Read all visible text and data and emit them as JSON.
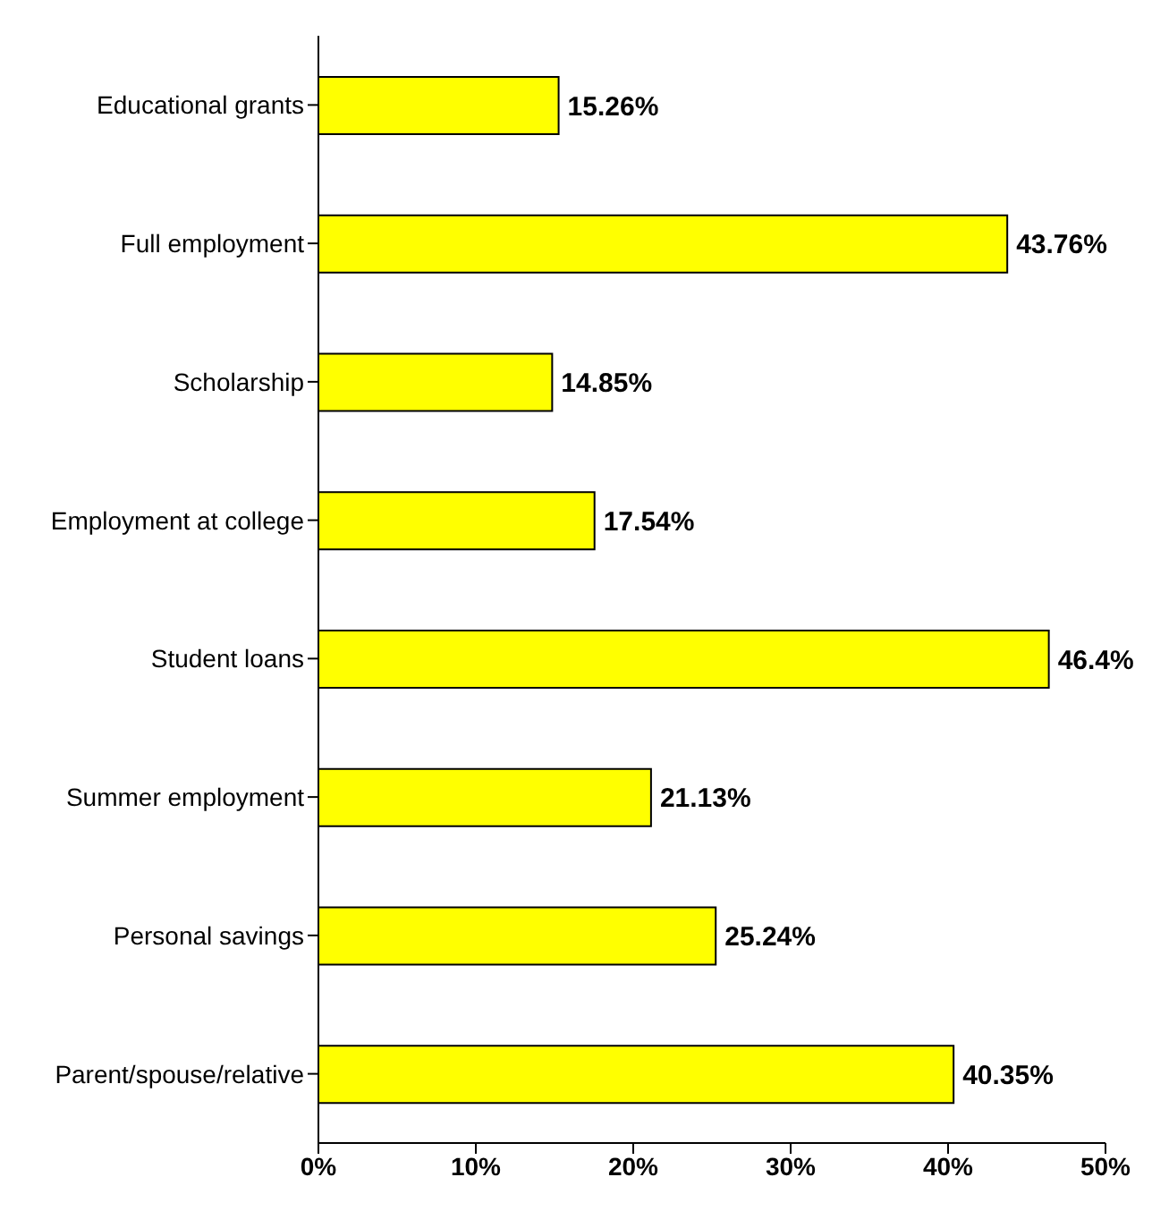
{
  "chart_data": {
    "type": "bar",
    "orientation": "horizontal",
    "categories": [
      "Educational grants",
      "Full employment",
      "Scholarship",
      "Employment at college",
      "Student loans",
      "Summer employment",
      "Personal savings",
      "Parent/spouse/relative"
    ],
    "values": [
      15.26,
      43.76,
      14.85,
      17.54,
      46.4,
      21.13,
      25.24,
      40.35
    ],
    "value_labels": [
      "15.26%",
      "43.76%",
      "14.85%",
      "17.54%",
      "46.4%",
      "21.13%",
      "25.24%",
      "40.35%"
    ],
    "color": "#ffff00",
    "xlim": [
      0,
      50
    ],
    "xticks": [
      {
        "value": 0,
        "label": "0%"
      },
      {
        "value": 10,
        "label": "10%"
      },
      {
        "value": 20,
        "label": "20%"
      },
      {
        "value": 30,
        "label": "30%"
      },
      {
        "value": 40,
        "label": "40%"
      },
      {
        "value": 50,
        "label": "50%"
      }
    ],
    "grid": false,
    "legend": false
  }
}
